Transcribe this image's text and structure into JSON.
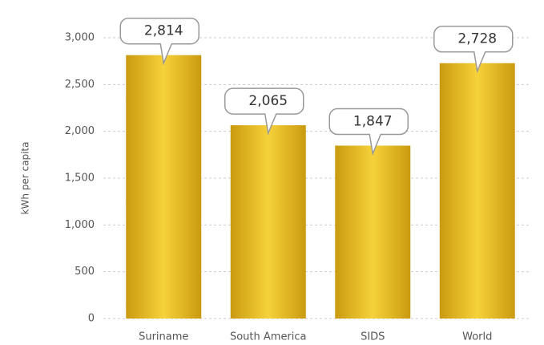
{
  "chart_data": {
    "type": "bar",
    "y_label": "kWh per capita",
    "categories": [
      "Suriname",
      "South America",
      "SIDS",
      "World"
    ],
    "values": [
      2814,
      2065,
      1847,
      2728
    ],
    "value_labels": [
      "2,814",
      "2,065",
      "1,847",
      "2,728"
    ],
    "color": "#e8b820",
    "ylim": [
      0,
      3000
    ],
    "yticks": [
      0,
      500,
      {
        "value": 1000,
        "label": "1,000"
      },
      {
        "value": 1500,
        "label": "1,500"
      },
      {
        "value": 2000,
        "label": "2,000"
      },
      {
        "value": 2500,
        "label": "2,500"
      },
      {
        "value": 3000,
        "label": "3,000"
      }
    ],
    "grid": true
  }
}
